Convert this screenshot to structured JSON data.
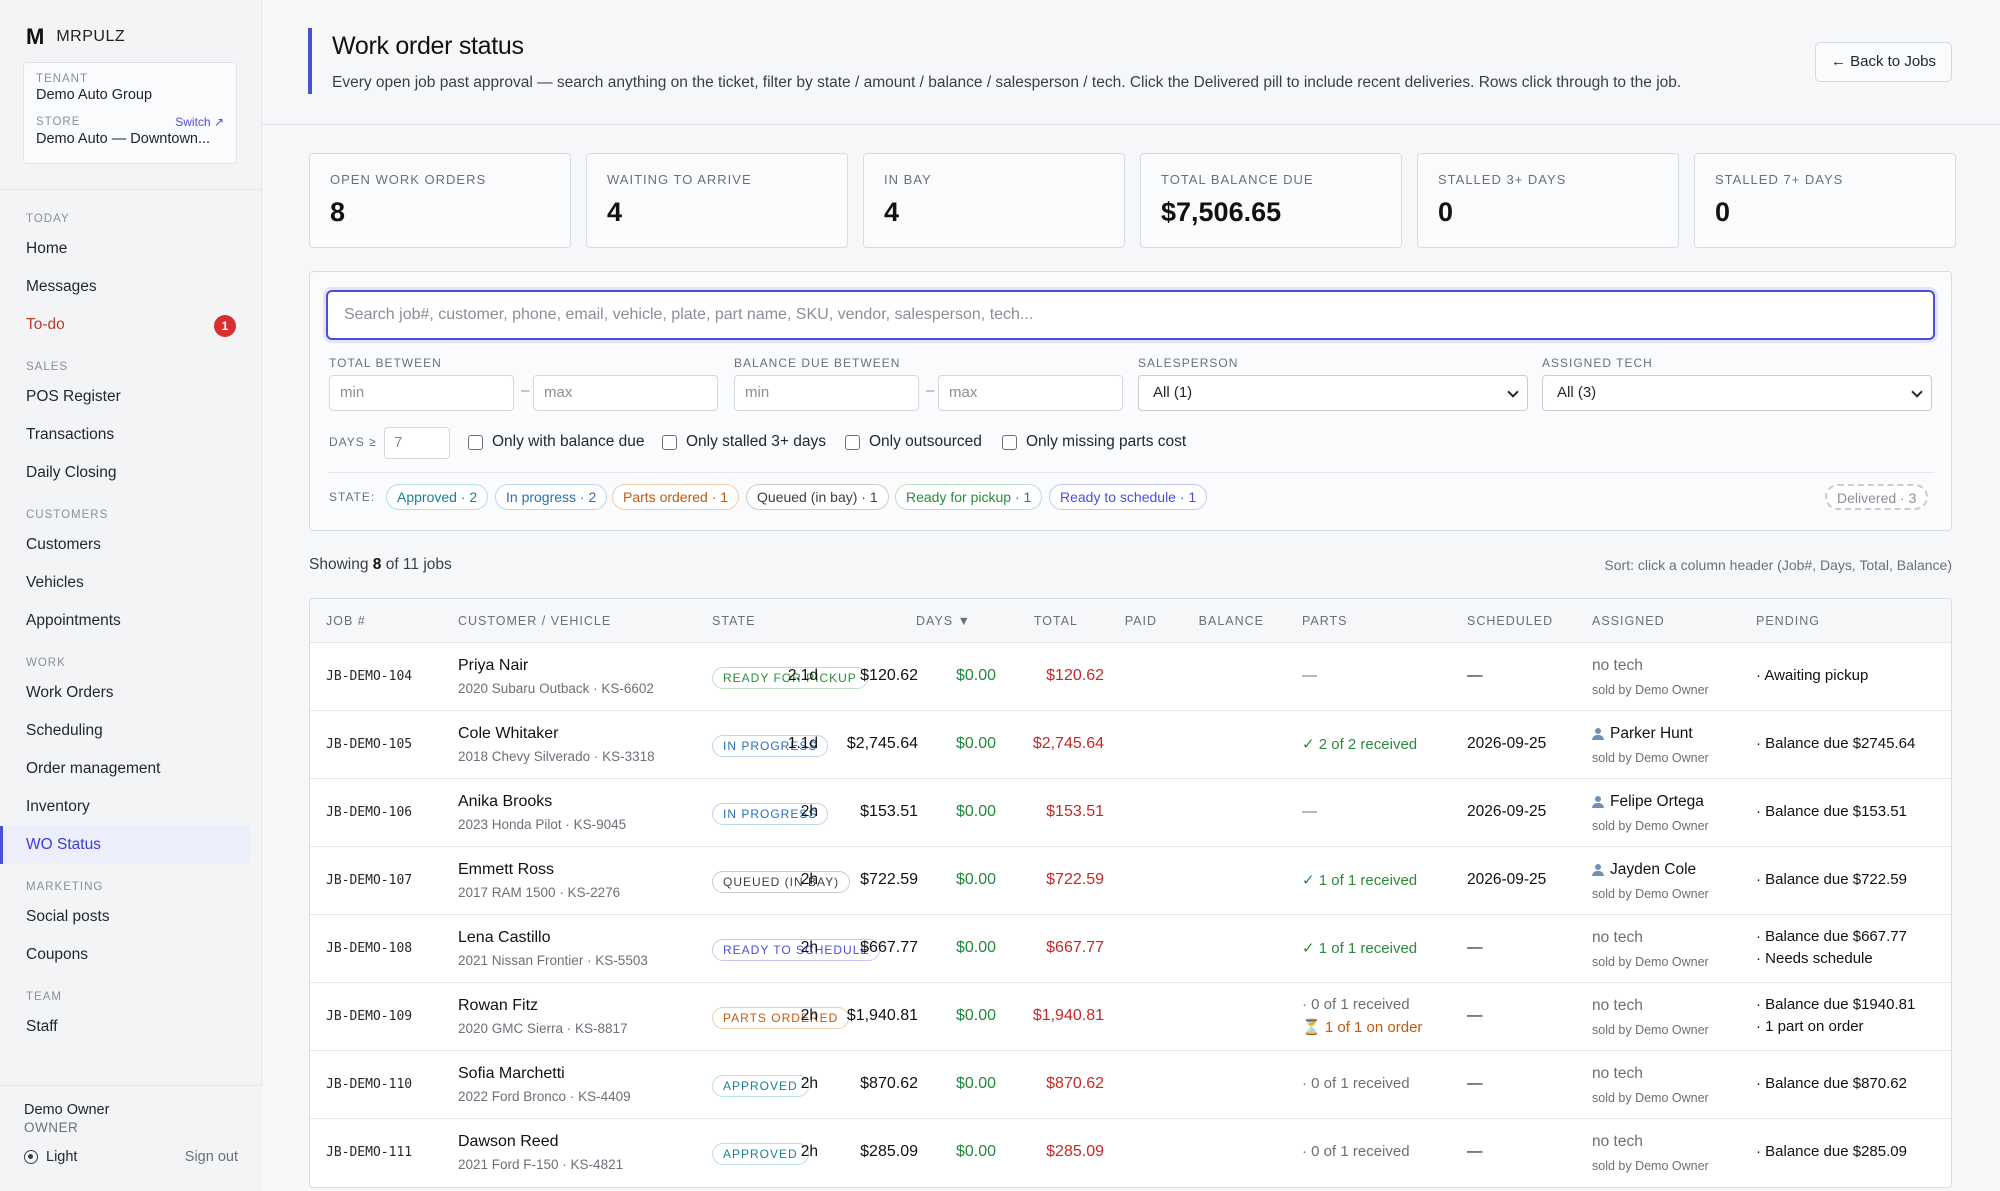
{
  "brand": {
    "mark": "M",
    "name": "MRPULZ"
  },
  "tenant": {
    "label": "TENANT",
    "value": "Demo Auto Group",
    "store_label": "STORE",
    "switch": "Switch ↗",
    "store_value": "Demo Auto — Downtown..."
  },
  "nav": {
    "today": "TODAY",
    "home": "Home",
    "messages": "Messages",
    "todo": "To-do",
    "todo_count": "1",
    "sales": "SALES",
    "pos": "POS Register",
    "transactions": "Transactions",
    "closing": "Daily Closing",
    "customers_section": "CUSTOMERS",
    "customers": "Customers",
    "vehicles": "Vehicles",
    "appointments": "Appointments",
    "work": "WORK",
    "work_orders": "Work Orders",
    "scheduling": "Scheduling",
    "order_mgmt": "Order management",
    "inventory": "Inventory",
    "wo_status": "WO Status",
    "marketing": "MARKETING",
    "social": "Social posts",
    "coupons": "Coupons",
    "team": "TEAM",
    "staff": "Staff"
  },
  "footer": {
    "name": "Demo Owner",
    "role": "OWNER",
    "theme": "Light",
    "signout": "Sign out"
  },
  "header": {
    "title": "Work order status",
    "subtitle": "Every open job past approval — search anything on the ticket, filter by state / amount / balance / salesperson / tech. Click the Delivered pill to include recent deliveries. Rows click through to the job.",
    "back": "← Back to Jobs"
  },
  "stats": [
    {
      "label": "OPEN WORK ORDERS",
      "value": "8"
    },
    {
      "label": "WAITING TO ARRIVE",
      "value": "4"
    },
    {
      "label": "IN BAY",
      "value": "4"
    },
    {
      "label": "TOTAL BALANCE DUE",
      "value": "$7,506.65"
    },
    {
      "label": "STALLED 3+ DAYS",
      "value": "0"
    },
    {
      "label": "STALLED 7+ DAYS",
      "value": "0"
    }
  ],
  "filters": {
    "search_placeholder": "Search job#, customer, phone, email, vehicle, plate, part name, SKU, vendor, salesperson, tech...",
    "total_label": "TOTAL BETWEEN",
    "balance_label": "BALANCE DUE BETWEEN",
    "salesperson_label": "SALESPERSON",
    "tech_label": "ASSIGNED TECH",
    "min": "min",
    "max": "max",
    "dash": "–",
    "salesperson_value": "All (1)",
    "tech_value": "All (3)",
    "days_label": "DAYS ≥",
    "days_value": "7",
    "chk_balance": "Only with balance due",
    "chk_stalled": "Only stalled 3+ days",
    "chk_outsourced": "Only outsourced",
    "chk_missing": "Only missing parts cost",
    "state_label": "STATE:",
    "pills": {
      "approved": "Approved · 2",
      "progress": "In progress · 2",
      "parts": "Parts ordered · 1",
      "queued": "Queued (in bay) · 1",
      "ready": "Ready for pickup · 1",
      "schedule": "Ready to schedule · 1",
      "delivered": "Delivered · 3"
    }
  },
  "listing": {
    "showing_prefix": "Showing ",
    "shown": "8",
    "showing_suffix": " of 11 jobs",
    "sort_hint": "Sort: click a column header (Job#, Days, Total, Balance)"
  },
  "table": {
    "headers": {
      "job": "JOB #",
      "customer": "CUSTOMER / VEHICLE",
      "state": "STATE",
      "days": "DAYS ▼",
      "total": "TOTAL",
      "paid": "PAID",
      "balance": "BALANCE",
      "parts": "PARTS",
      "scheduled": "SCHEDULED",
      "assigned": "ASSIGNED",
      "pending": "PENDING"
    },
    "rows": [
      {
        "job": "JB-DEMO-104",
        "customer": "Priya Nair",
        "vehicle": "2020 Subaru Outback · KS-6602",
        "state": "READY FOR PICKUP",
        "days": "2.1d",
        "total": "$120.62",
        "paid": "$0.00",
        "balance": "$120.62",
        "parts1": "—",
        "scheduled": "—",
        "tech": "no tech",
        "sold": "sold by Demo Owner",
        "pend1": "· Awaiting pickup"
      },
      {
        "job": "JB-DEMO-105",
        "customer": "Cole Whitaker",
        "vehicle": "2018 Chevy Silverado · KS-3318",
        "state": "IN PROGRESS",
        "days": "1.1d",
        "total": "$2,745.64",
        "paid": "$0.00",
        "balance": "$2,745.64",
        "parts1": "✓ 2 of 2 received",
        "scheduled": "2026-09-25",
        "tech": "Parker Hunt",
        "sold": "sold by Demo Owner",
        "pend1": "· Balance due $2745.64"
      },
      {
        "job": "JB-DEMO-106",
        "customer": "Anika Brooks",
        "vehicle": "2023 Honda Pilot · KS-9045",
        "state": "IN PROGRESS",
        "days": "2h",
        "total": "$153.51",
        "paid": "$0.00",
        "balance": "$153.51",
        "parts1": "—",
        "scheduled": "2026-09-25",
        "tech": "Felipe Ortega",
        "sold": "sold by Demo Owner",
        "pend1": "· Balance due $153.51"
      },
      {
        "job": "JB-DEMO-107",
        "customer": "Emmett Ross",
        "vehicle": "2017 RAM 1500 · KS-2276",
        "state": "QUEUED (IN BAY)",
        "days": "2h",
        "total": "$722.59",
        "paid": "$0.00",
        "balance": "$722.59",
        "parts1": "✓ 1 of 1 received",
        "scheduled": "2026-09-25",
        "tech": "Jayden Cole",
        "sold": "sold by Demo Owner",
        "pend1": "· Balance due $722.59"
      },
      {
        "job": "JB-DEMO-108",
        "customer": "Lena Castillo",
        "vehicle": "2021 Nissan Frontier · KS-5503",
        "state": "READY TO SCHEDULE",
        "days": "2h",
        "total": "$667.77",
        "paid": "$0.00",
        "balance": "$667.77",
        "parts1": "✓ 1 of 1 received",
        "scheduled": "—",
        "tech": "no tech",
        "sold": "sold by Demo Owner",
        "pend1": "· Balance due $667.77",
        "pend2": "· Needs schedule"
      },
      {
        "job": "JB-DEMO-109",
        "customer": "Rowan Fitz",
        "vehicle": "2020 GMC Sierra · KS-8817",
        "state": "PARTS ORDERED",
        "days": "2h",
        "total": "$1,940.81",
        "paid": "$0.00",
        "balance": "$1,940.81",
        "parts1": "· 0 of 1 received",
        "parts2": "⏳ 1 of 1 on order",
        "scheduled": "—",
        "tech": "no tech",
        "sold": "sold by Demo Owner",
        "pend1": "· Balance due $1940.81",
        "pend2": "· 1 part on order"
      },
      {
        "job": "JB-DEMO-110",
        "customer": "Sofia Marchetti",
        "vehicle": "2022 Ford Bronco · KS-4409",
        "state": "APPROVED",
        "days": "2h",
        "total": "$870.62",
        "paid": "$0.00",
        "balance": "$870.62",
        "parts1": "· 0 of 1 received",
        "scheduled": "—",
        "tech": "no tech",
        "sold": "sold by Demo Owner",
        "pend1": "· Balance due $870.62"
      },
      {
        "job": "JB-DEMO-111",
        "customer": "Dawson Reed",
        "vehicle": "2021 Ford F-150 · KS-4821",
        "state": "APPROVED",
        "days": "2h",
        "total": "$285.09",
        "paid": "$0.00",
        "balance": "$285.09",
        "parts1": "· 0 of 1 received",
        "scheduled": "—",
        "tech": "no tech",
        "sold": "sold by Demo Owner",
        "pend1": "· Balance due $285.09"
      }
    ]
  },
  "colors": {
    "accent": "#4a4fd6",
    "paid": "#1f8a3a",
    "balance": "#c62828",
    "todo": "#c0392b"
  }
}
